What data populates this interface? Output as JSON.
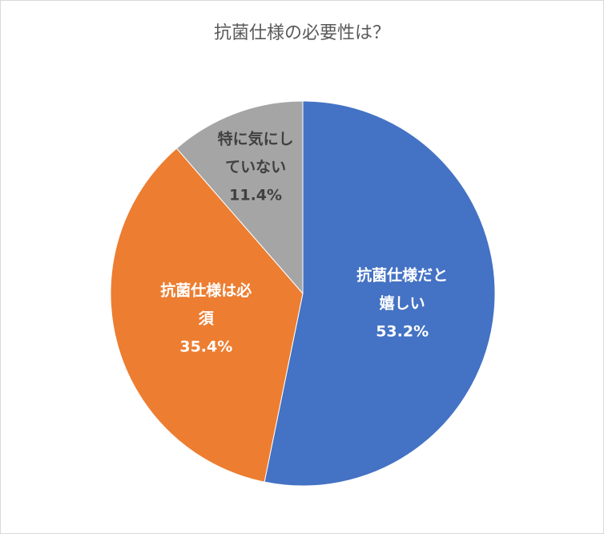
{
  "chart_data": {
    "type": "pie",
    "title": "抗菌仕様の必要性は？",
    "categories": [
      "抗菌仕様だと嬉しい",
      "抗菌仕様は必須",
      "特に気にしていない"
    ],
    "values": [
      53.2,
      35.4,
      11.4
    ],
    "value_labels": [
      "53.2%",
      "35.4%",
      "11.4%"
    ],
    "colors": [
      "#4472c4",
      "#ed7d31",
      "#a5a5a5"
    ]
  }
}
